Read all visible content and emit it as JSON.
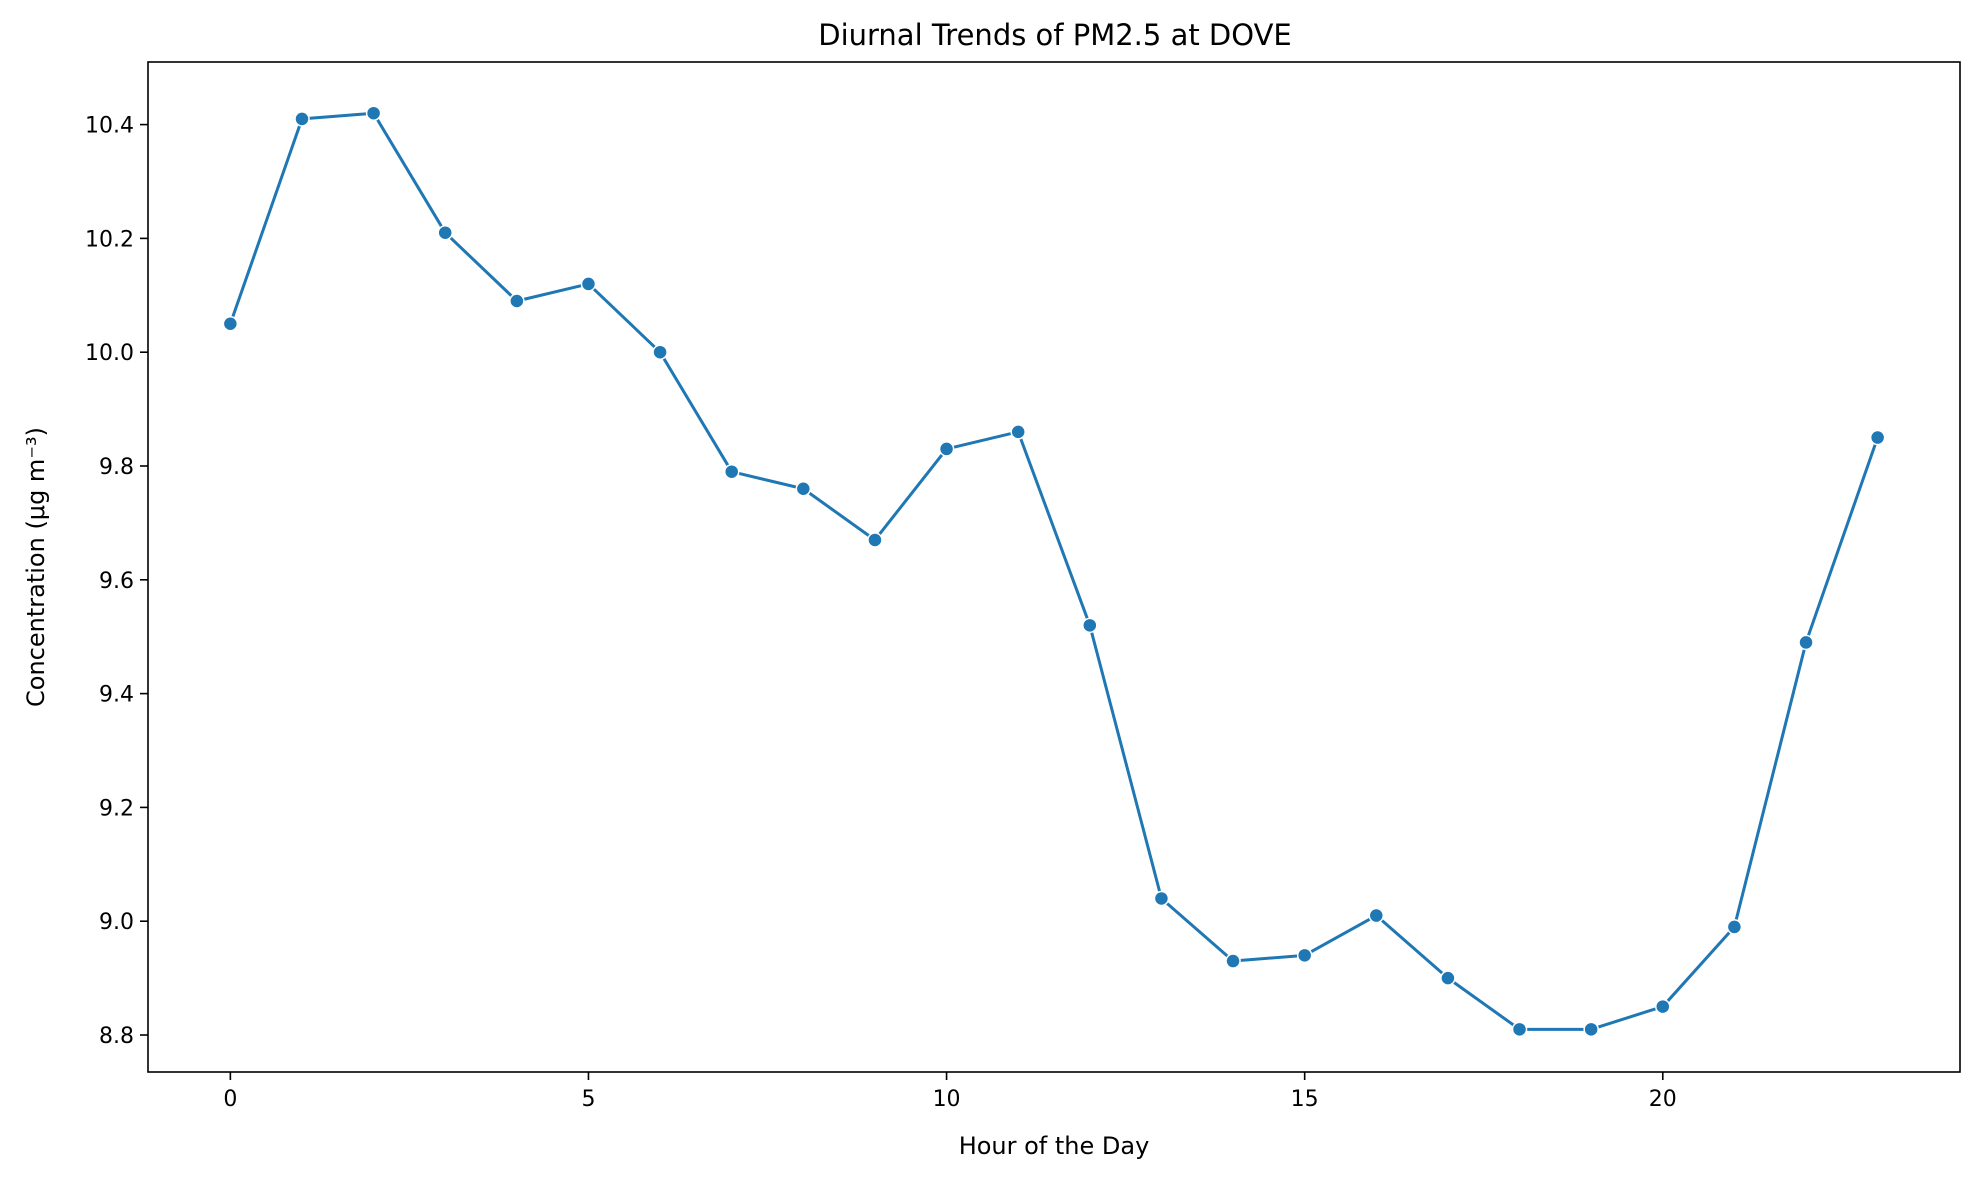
{
  "chart_data": {
    "type": "line",
    "title": "Diurnal Trends of PM2.5 at DOVE",
    "xlabel": "Hour of the Day",
    "ylabel": "Concentration (μg m⁻³)",
    "xlim": [
      -1.15,
      24.15
    ],
    "ylim": [
      8.735,
      10.51
    ],
    "xticks": [
      0,
      5,
      10,
      15,
      20
    ],
    "xtick_labels": [
      "0",
      "5",
      "10",
      "15",
      "20"
    ],
    "yticks": [
      8.8,
      9.0,
      9.2,
      9.4,
      9.6,
      9.8,
      10.0,
      10.2,
      10.4
    ],
    "ytick_labels": [
      "8.8",
      "9.0",
      "9.2",
      "9.4",
      "9.6",
      "9.8",
      "10.0",
      "10.2",
      "10.4"
    ],
    "grid": false,
    "series": [
      {
        "color": "#1f77b4",
        "marker": "circle",
        "x": [
          0,
          1,
          2,
          3,
          4,
          5,
          6,
          7,
          8,
          9,
          10,
          11,
          12,
          13,
          14,
          15,
          16,
          17,
          18,
          19,
          20,
          21,
          22,
          23
        ],
        "values": [
          10.05,
          10.41,
          10.42,
          10.21,
          10.09,
          10.12,
          10.0,
          9.79,
          9.76,
          9.67,
          9.83,
          9.86,
          9.52,
          9.04,
          8.93,
          8.94,
          9.01,
          8.9,
          8.81,
          8.81,
          8.85,
          8.99,
          9.49,
          9.85
        ]
      }
    ]
  }
}
